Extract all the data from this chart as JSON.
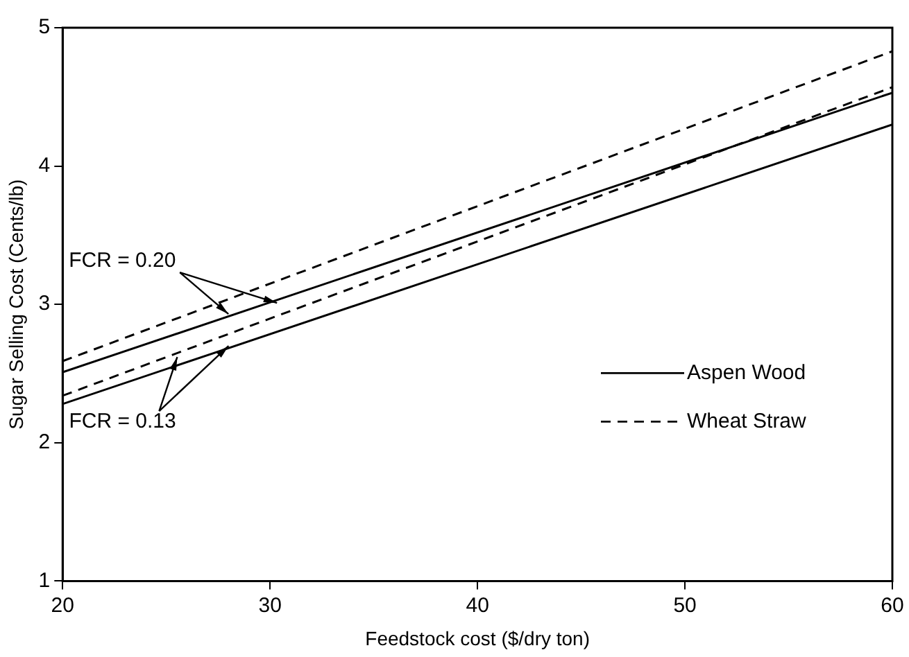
{
  "chart_data": {
    "type": "line",
    "xlabel": "Feedstock cost ($/dry ton)",
    "ylabel": "Sugar Selling Cost (Cents/lb)",
    "x": [
      20,
      60
    ],
    "series": [
      {
        "name": "Aspen Wood",
        "color": "#000000",
        "line_style": "solid",
        "values": [
          2.51,
          4.53
        ]
      },
      {
        "name": "Wheat Straw",
        "color": "#000000",
        "line_style": "dashed",
        "values": [
          2.59,
          4.83
        ]
      },
      {
        "color": "#000000",
        "line_style": "solid",
        "values": [
          2.28,
          4.3
        ]
      },
      {
        "color": "#000000",
        "line_style": "dashed",
        "values": [
          2.34,
          4.57
        ]
      }
    ],
    "annotations": [
      {
        "text": "FCR = 0.20",
        "x": 30,
        "y": 3.03
      },
      {
        "text": "FCR = 0.13",
        "x": 28,
        "y": 2.7
      }
    ],
    "xlim": [
      20,
      60
    ],
    "xticks": [
      20,
      30,
      40,
      50,
      60
    ],
    "ylim": [
      1,
      5
    ],
    "yticks": [
      1,
      2,
      3,
      4,
      5
    ],
    "grid": false,
    "legend": "bottom right",
    "marker": "none"
  }
}
